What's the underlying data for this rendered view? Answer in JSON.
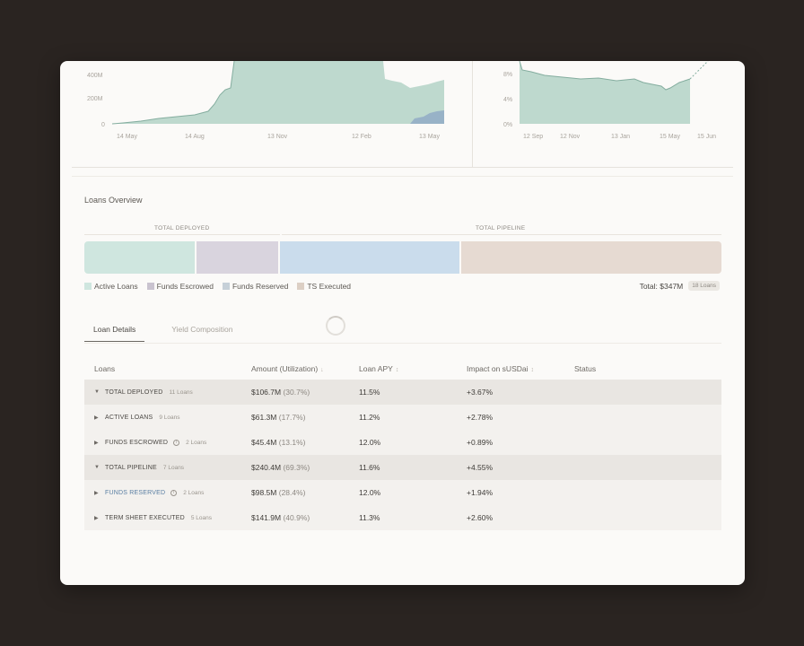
{
  "colors": {
    "active_loans": "#cfe6df",
    "funds_escrowed": "#d9d4de",
    "funds_reserved": "#cadcec",
    "ts_executed": "#e6dad2",
    "chart_area": "#a9cbbf",
    "chart_line": "#7faa9c",
    "chart_secondary": "#9fb3cc"
  },
  "left_chart": {
    "y_ticks": [
      "400M",
      "200M",
      "0"
    ],
    "x_ticks": [
      "14 May",
      "14 Aug",
      "13 Nov",
      "12 Feb",
      "13 May"
    ]
  },
  "right_chart": {
    "y_ticks": [
      "8%",
      "4%",
      "0%"
    ],
    "x_ticks": [
      "12 Sep",
      "12 Nov",
      "13 Jan",
      "15 May",
      "15 Jun"
    ]
  },
  "loans_overview": {
    "title": "Loans Overview",
    "group_deployed": "TOTAL DEPLOYED",
    "group_pipeline": "TOTAL PIPELINE",
    "segments": [
      {
        "key": "active_loans",
        "value": 61.3
      },
      {
        "key": "funds_escrowed",
        "value": 45.4
      },
      {
        "key": "funds_reserved",
        "value": 98.5
      },
      {
        "key": "ts_executed",
        "value": 141.9
      }
    ],
    "legend": [
      "Active Loans",
      "Funds Escrowed",
      "Funds Reserved",
      "TS Executed"
    ],
    "total_label": "Total: $347M",
    "total_count": "18 Loans"
  },
  "tabs": [
    "Loan Details",
    "Yield Composition"
  ],
  "table": {
    "headers": {
      "loans": "Loans",
      "amount": "Amount (Utilization)",
      "apy": "Loan APY",
      "impact": "Impact on sUSDai",
      "status": "Status"
    },
    "rows": [
      {
        "name": "TOTAL DEPLOYED",
        "count": "11 Loans",
        "amount": "$106.7M",
        "util": "(30.7%)",
        "apy": "11.5%",
        "impact": "+3.67%"
      },
      {
        "name": "ACTIVE LOANS",
        "count": "9 Loans",
        "amount": "$61.3M",
        "util": "(17.7%)",
        "apy": "11.2%",
        "impact": "+2.78%"
      },
      {
        "name": "FUNDS ESCROWED",
        "count": "2 Loans",
        "amount": "$45.4M",
        "util": "(13.1%)",
        "apy": "12.0%",
        "impact": "+0.89%"
      },
      {
        "name": "TOTAL PIPELINE",
        "count": "7 Loans",
        "amount": "$240.4M",
        "util": "(69.3%)",
        "apy": "11.6%",
        "impact": "+4.55%"
      },
      {
        "name": "FUNDS RESERVED",
        "count": "2 Loans",
        "amount": "$98.5M",
        "util": "(28.4%)",
        "apy": "12.0%",
        "impact": "+1.94%"
      },
      {
        "name": "TERM SHEET EXECUTED",
        "count": "5 Loans",
        "amount": "$141.9M",
        "util": "(40.9%)",
        "apy": "11.3%",
        "impact": "+2.60%"
      }
    ]
  }
}
